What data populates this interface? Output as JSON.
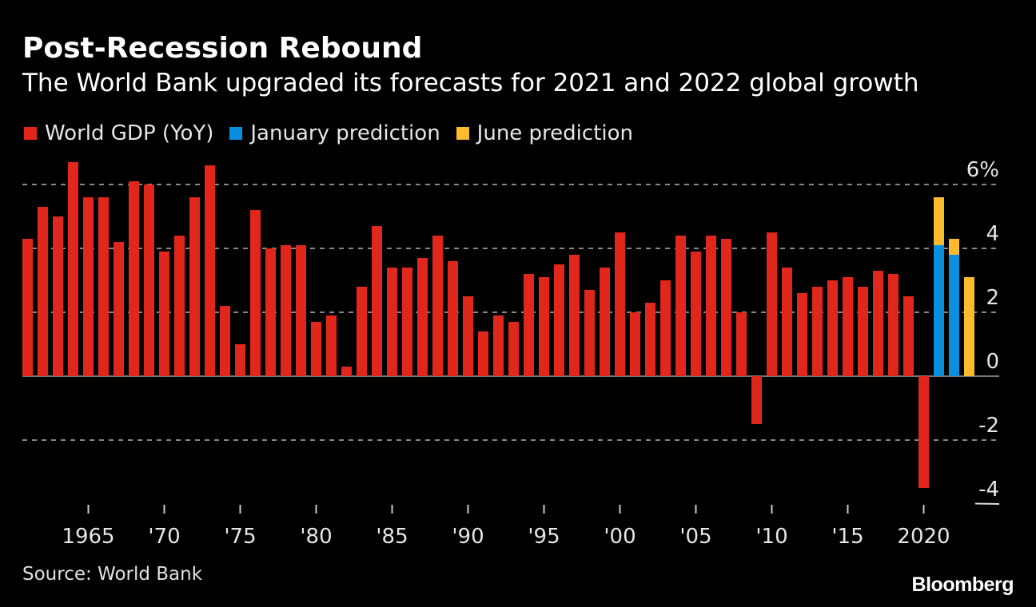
{
  "title": "Post-Recession Rebound",
  "subtitle": "The World Bank upgraded its forecasts for 2021 and 2022 global growth",
  "source": "Source: World Bank",
  "logo": "Bloomberg",
  "chart_data": {
    "type": "bar",
    "title": "Post-Recession Rebound",
    "subtitle": "The World Bank upgraded its forecasts for 2021 and 2022 global growth",
    "legend_position": "top-left",
    "grid": true,
    "ylim": [
      -4,
      6
    ],
    "yticks": [
      6,
      4,
      2,
      0,
      -2,
      -4
    ],
    "ytick_labels": [
      "6%",
      "4",
      "2",
      "0",
      "-2",
      "-4"
    ],
    "xticks": [
      1965,
      1970,
      1975,
      1980,
      1985,
      1990,
      1995,
      2000,
      2005,
      2010,
      2015,
      2020
    ],
    "xtick_labels": [
      "1965",
      "'70",
      "'75",
      "'80",
      "'85",
      "'90",
      "'95",
      "'00",
      "'05",
      "'10",
      "'15",
      "2020"
    ],
    "x": [
      1961,
      1962,
      1963,
      1964,
      1965,
      1966,
      1967,
      1968,
      1969,
      1970,
      1971,
      1972,
      1973,
      1974,
      1975,
      1976,
      1977,
      1978,
      1979,
      1980,
      1981,
      1982,
      1983,
      1984,
      1985,
      1986,
      1987,
      1988,
      1989,
      1990,
      1991,
      1992,
      1993,
      1994,
      1995,
      1996,
      1997,
      1998,
      1999,
      2000,
      2001,
      2002,
      2003,
      2004,
      2005,
      2006,
      2007,
      2008,
      2009,
      2010,
      2011,
      2012,
      2013,
      2014,
      2015,
      2016,
      2017,
      2018,
      2019,
      2020,
      2021,
      2022,
      2023
    ],
    "series": [
      {
        "name": "World GDP (YoY)",
        "color": "#e1261c",
        "values": [
          4.3,
          5.3,
          5.0,
          6.7,
          5.6,
          5.6,
          4.2,
          6.1,
          6.0,
          3.9,
          4.4,
          5.6,
          6.6,
          2.2,
          1.0,
          5.2,
          4.0,
          4.1,
          4.1,
          1.7,
          1.9,
          0.3,
          2.8,
          4.7,
          3.4,
          3.4,
          3.7,
          4.4,
          3.6,
          2.5,
          1.4,
          1.9,
          1.7,
          3.2,
          3.1,
          3.5,
          3.8,
          2.7,
          3.4,
          4.5,
          2.0,
          2.3,
          3.0,
          4.4,
          3.9,
          4.4,
          4.3,
          2.0,
          -1.5,
          4.5,
          3.4,
          2.6,
          2.8,
          3.0,
          3.1,
          2.8,
          3.3,
          3.2,
          2.5,
          -3.5,
          null,
          null,
          null
        ]
      },
      {
        "name": "January prediction",
        "color": "#0a8ee0",
        "values": [
          null,
          null,
          null,
          null,
          null,
          null,
          null,
          null,
          null,
          null,
          null,
          null,
          null,
          null,
          null,
          null,
          null,
          null,
          null,
          null,
          null,
          null,
          null,
          null,
          null,
          null,
          null,
          null,
          null,
          null,
          null,
          null,
          null,
          null,
          null,
          null,
          null,
          null,
          null,
          null,
          null,
          null,
          null,
          null,
          null,
          null,
          null,
          null,
          null,
          null,
          null,
          null,
          null,
          null,
          null,
          null,
          null,
          null,
          null,
          null,
          4.1,
          3.8,
          null
        ]
      },
      {
        "name": "June prediction",
        "color": "#fbbb2c",
        "values": [
          null,
          null,
          null,
          null,
          null,
          null,
          null,
          null,
          null,
          null,
          null,
          null,
          null,
          null,
          null,
          null,
          null,
          null,
          null,
          null,
          null,
          null,
          null,
          null,
          null,
          null,
          null,
          null,
          null,
          null,
          null,
          null,
          null,
          null,
          null,
          null,
          null,
          null,
          null,
          null,
          null,
          null,
          null,
          null,
          null,
          null,
          null,
          null,
          null,
          null,
          null,
          null,
          null,
          null,
          null,
          null,
          null,
          null,
          null,
          null,
          5.6,
          4.3,
          3.1
        ]
      }
    ]
  }
}
